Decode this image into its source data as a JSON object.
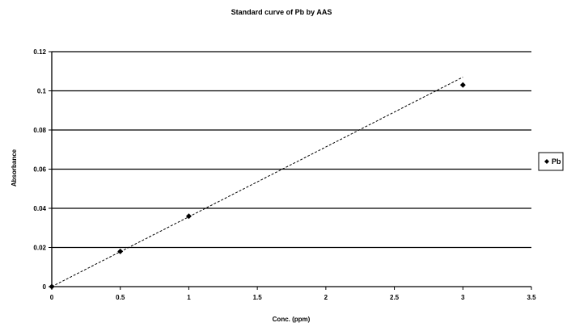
{
  "chart_data": {
    "type": "scatter",
    "title": "Standard curve of Pb by AAS",
    "xlabel": "Conc. (ppm)",
    "ylabel": "Absorbance",
    "xlim": [
      0,
      3.5
    ],
    "ylim": [
      0,
      0.12
    ],
    "x_ticks": [
      0,
      0.5,
      1,
      1.5,
      2,
      2.5,
      3,
      3.5
    ],
    "x_tick_labels": [
      "0",
      "0.5",
      "1",
      "1.5",
      "2",
      "2.5",
      "3",
      "3.5"
    ],
    "y_ticks": [
      0,
      0.02,
      0.04,
      0.06,
      0.08,
      0.1,
      0.12
    ],
    "y_tick_labels": [
      "0",
      "0.02",
      "0.04",
      "0.06",
      "0.08",
      "0.1",
      "0.12"
    ],
    "grid": "horizontal",
    "legend_position": "right",
    "series": [
      {
        "name": "Pb",
        "marker": "diamond",
        "points": [
          {
            "x": 0,
            "y": 0
          },
          {
            "x": 0.5,
            "y": 0.018
          },
          {
            "x": 1,
            "y": 0.036
          },
          {
            "x": 3,
            "y": 0.103
          }
        ]
      }
    ],
    "trendline": {
      "style": "dashed",
      "x": [
        0,
        3
      ],
      "y": [
        0,
        0.107
      ]
    }
  }
}
